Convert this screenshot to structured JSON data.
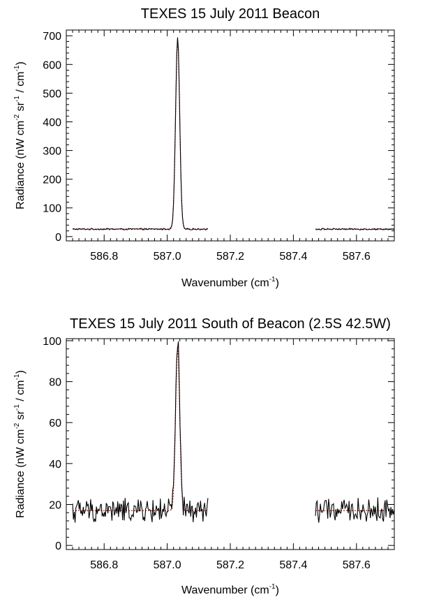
{
  "chart_data": [
    {
      "type": "line",
      "title": "TEXES 15 July 2011 Beacon",
      "xlabel": "Wavenumber",
      "xlabel_unit": "cm",
      "xlabel_unit_exp": "-1",
      "ylabel_parts": [
        "Radiance (nW cm",
        "-2",
        " sr",
        "-1",
        " / cm",
        "-1",
        ")"
      ],
      "xlim": [
        586.68,
        587.72
      ],
      "ylim": [
        -15,
        720
      ],
      "xticks": [
        586.8,
        587.0,
        587.2,
        587.4,
        587.6
      ],
      "xtick_labels": [
        "586.8",
        "587.0",
        "587.2",
        "587.4",
        "587.6"
      ],
      "yticks": [
        0,
        100,
        200,
        300,
        400,
        500,
        600,
        700
      ],
      "ytick_labels": [
        "0",
        "100",
        "200",
        "300",
        "400",
        "500",
        "600",
        "700"
      ],
      "peak_x": 587.033,
      "segments": [
        [
          586.7,
          587.13
        ],
        [
          587.47,
          587.72
        ]
      ],
      "series": [
        {
          "role": "observed",
          "color": "#000000",
          "style": "solid",
          "baseline": 26,
          "peak": 695,
          "width": 0.0065,
          "noise": 2.0
        },
        {
          "role": "model",
          "color": "#cc0000",
          "style": "dotted",
          "baseline": 26,
          "peak": 690,
          "width": 0.0065,
          "noise": 0
        }
      ],
      "grid": false
    },
    {
      "type": "line",
      "title": "TEXES 15 July 2011 South of Beacon (2.5S 42.5W)",
      "xlabel": "Wavenumber",
      "xlabel_unit": "cm",
      "xlabel_unit_exp": "-1",
      "ylabel_parts": [
        "Radiance (nW cm",
        "-2",
        " sr",
        "-1",
        " / cm",
        "-1",
        ")"
      ],
      "xlim": [
        586.68,
        587.72
      ],
      "ylim": [
        -2,
        101
      ],
      "xticks": [
        586.8,
        587.0,
        587.2,
        587.4,
        587.6
      ],
      "xtick_labels": [
        "586.8",
        "587.0",
        "587.2",
        "587.4",
        "587.6"
      ],
      "yticks": [
        0,
        20,
        40,
        60,
        80,
        100
      ],
      "ytick_labels": [
        "0",
        "20",
        "40",
        "60",
        "80",
        "100"
      ],
      "peak_x": 587.033,
      "segments": [
        [
          586.7,
          587.13
        ],
        [
          587.47,
          587.72
        ]
      ],
      "series": [
        {
          "role": "observed",
          "color": "#000000",
          "style": "solid",
          "baseline": 17,
          "peak": 99,
          "width": 0.0065,
          "noise": 4.5
        },
        {
          "role": "model",
          "color": "#cc0000",
          "style": "dotted",
          "baseline": 17,
          "peak": 97,
          "width": 0.0065,
          "noise": 0
        }
      ],
      "grid": false
    }
  ]
}
